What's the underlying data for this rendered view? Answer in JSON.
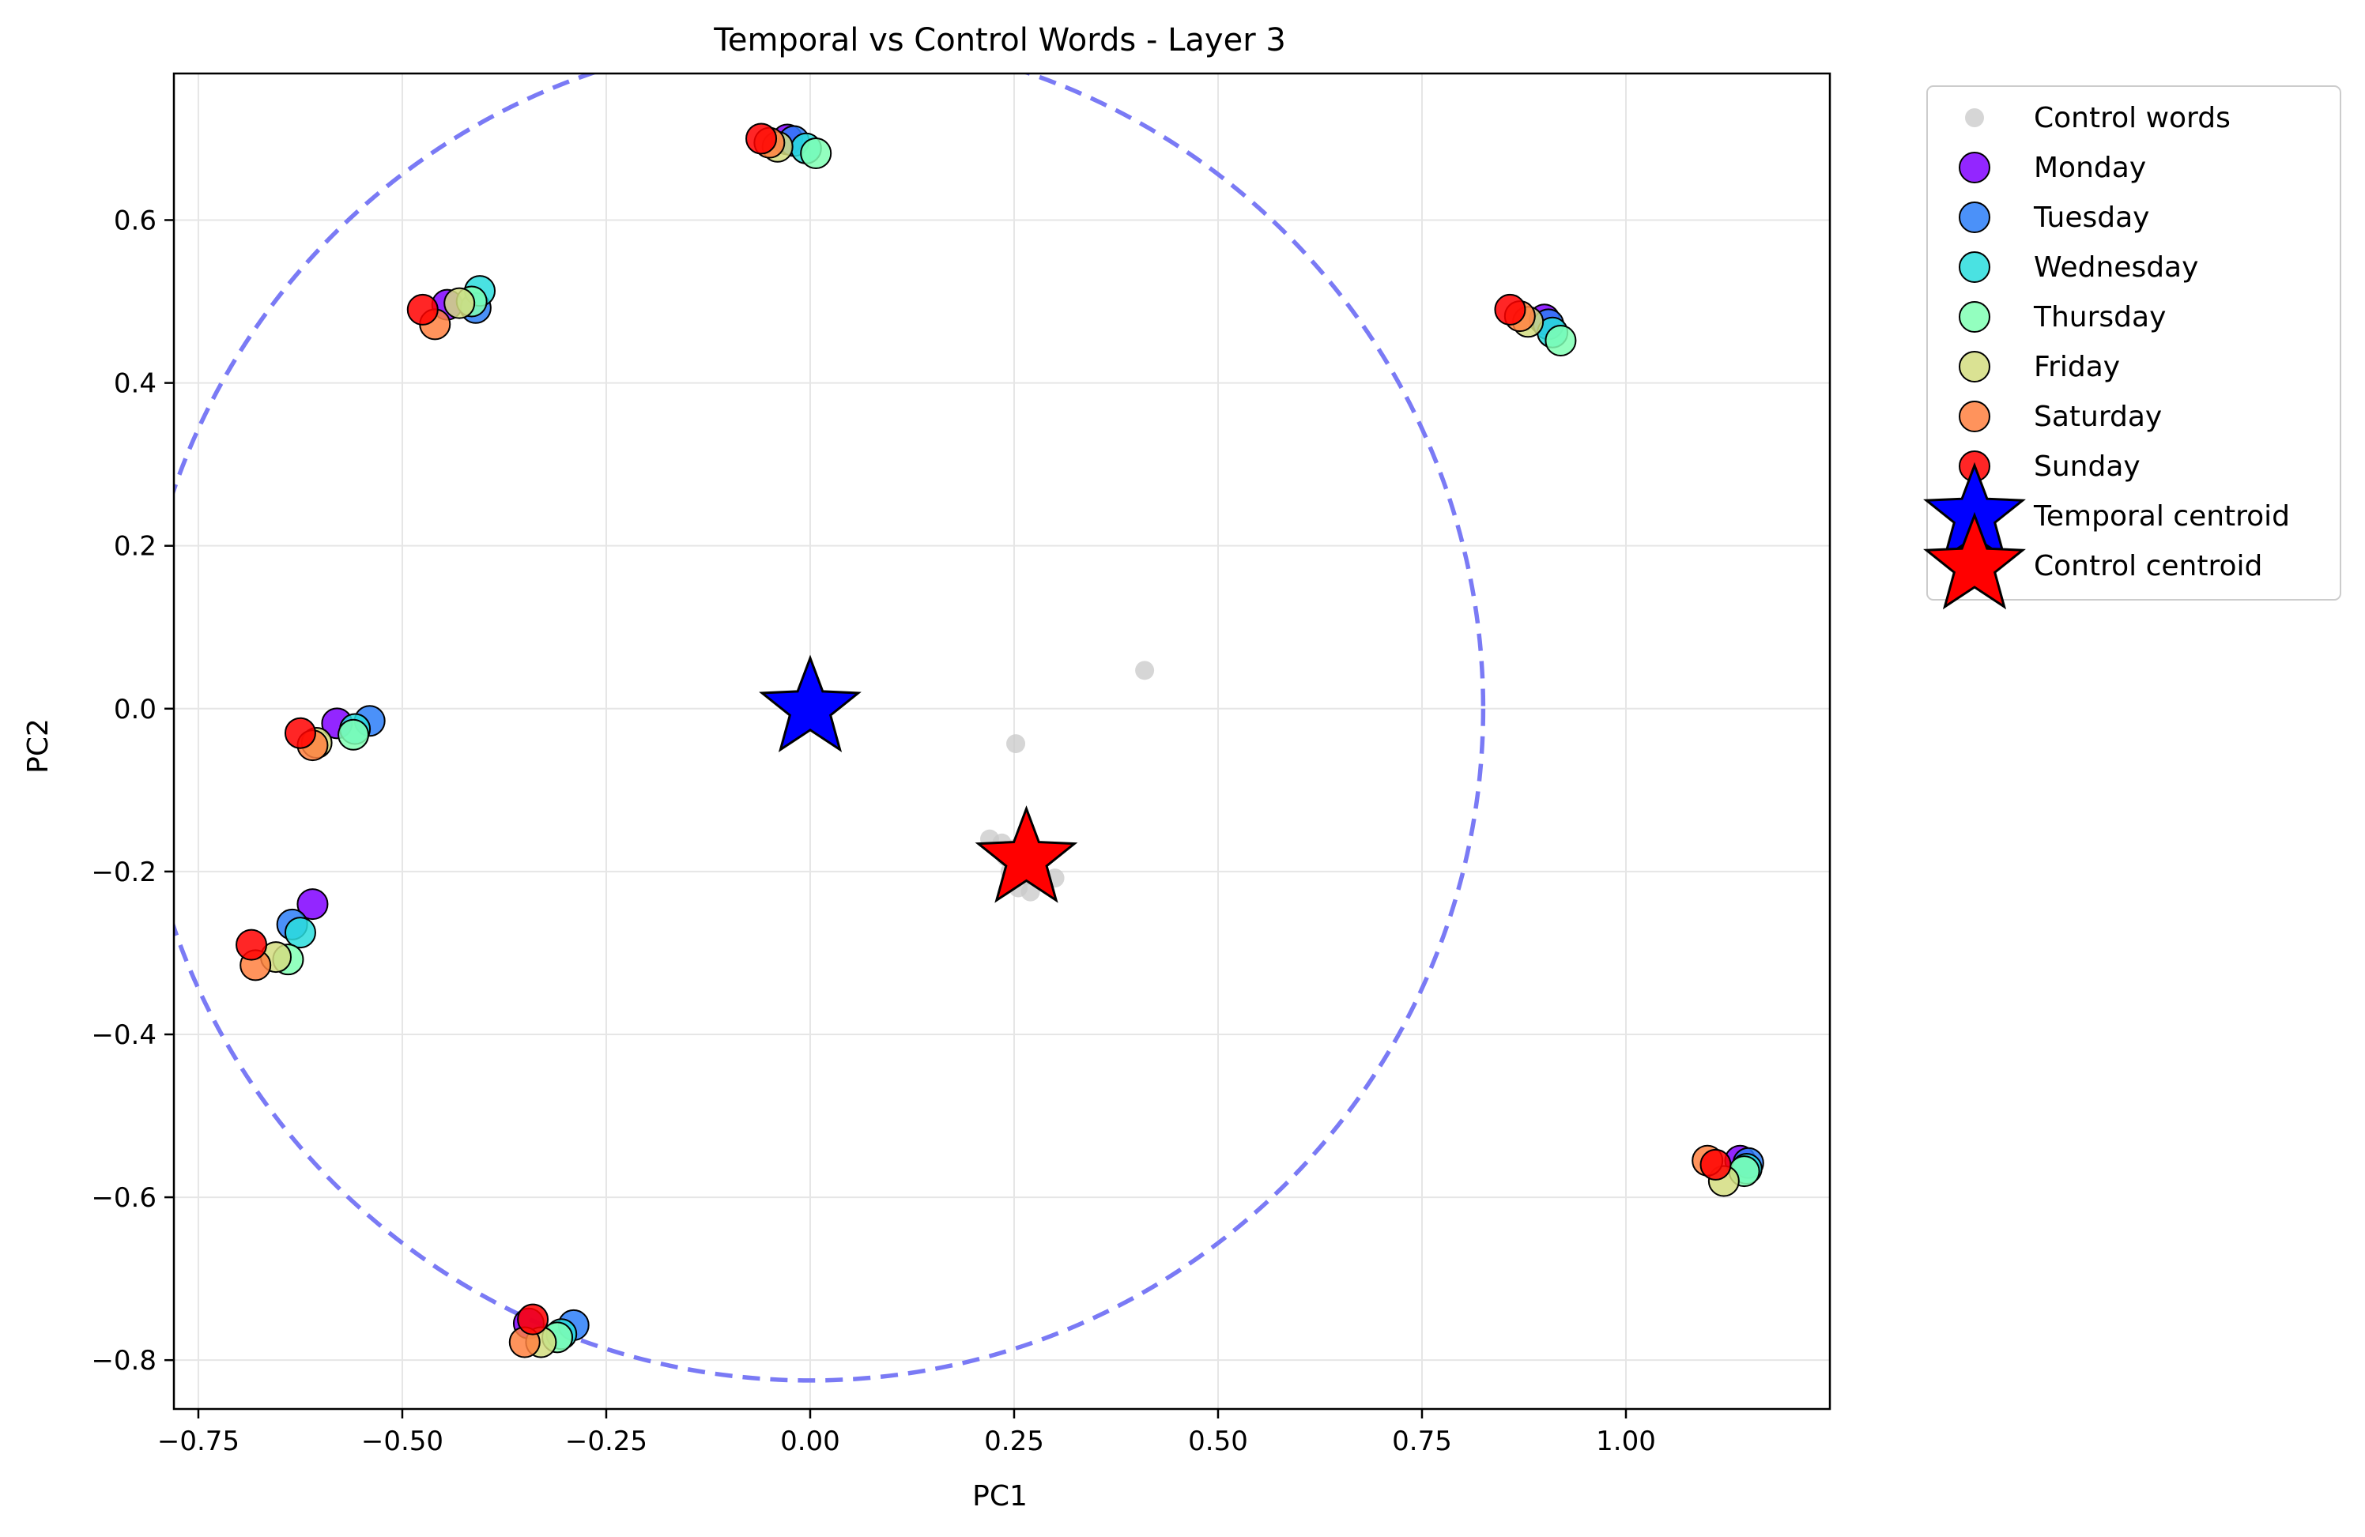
{
  "chart_data": {
    "type": "scatter",
    "title": "Temporal vs Control Words - Layer 3",
    "xlabel": "PC1",
    "ylabel": "PC2",
    "xlim": [
      -0.78,
      1.25
    ],
    "ylim": [
      -0.86,
      0.78
    ],
    "grid": true,
    "legend_position": "outside-right",
    "x_ticks": [
      -0.75,
      -0.5,
      -0.25,
      0.0,
      0.25,
      0.5,
      0.75,
      1.0
    ],
    "x_tick_labels": [
      "−0.75",
      "−0.50",
      "−0.25",
      "0.00",
      "0.25",
      "0.50",
      "0.75",
      "1.00"
    ],
    "y_ticks": [
      -0.8,
      -0.6,
      -0.4,
      -0.2,
      0.0,
      0.2,
      0.4,
      0.6
    ],
    "y_tick_labels": [
      "−0.8",
      "−0.6",
      "−0.4",
      "−0.2",
      "0.0",
      "0.2",
      "0.4",
      "0.6"
    ],
    "circle": {
      "center": [
        0.0,
        0.0
      ],
      "radius": 0.825,
      "color": "#7a7af5",
      "style": "dashed"
    },
    "series": [
      {
        "name": "Control words",
        "color": "#c8c8c8",
        "marker": "small-circle",
        "points": [
          [
            0.41,
            0.047
          ],
          [
            0.252,
            -0.043
          ],
          [
            0.22,
            -0.16
          ],
          [
            0.235,
            -0.165
          ],
          [
            0.25,
            -0.172
          ],
          [
            0.255,
            -0.19
          ],
          [
            0.245,
            -0.2
          ],
          [
            0.265,
            -0.205
          ],
          [
            0.28,
            -0.2
          ],
          [
            0.3,
            -0.208
          ],
          [
            0.255,
            -0.22
          ],
          [
            0.27,
            -0.225
          ],
          [
            0.24,
            -0.182
          ],
          [
            0.285,
            -0.175
          ]
        ]
      },
      {
        "name": "Monday",
        "color": "#8000ff",
        "points": [
          [
            -0.028,
            0.699
          ],
          [
            -0.445,
            0.496
          ],
          [
            -0.58,
            -0.018
          ],
          [
            -0.61,
            -0.24
          ],
          [
            -0.345,
            -0.755
          ],
          [
            0.9,
            0.478
          ],
          [
            1.14,
            -0.555
          ]
        ]
      },
      {
        "name": "Tuesday",
        "color": "#2c7ef8",
        "points": [
          [
            -0.02,
            0.697
          ],
          [
            -0.41,
            0.492
          ],
          [
            -0.54,
            -0.015
          ],
          [
            -0.635,
            -0.265
          ],
          [
            -0.29,
            -0.757
          ],
          [
            0.905,
            0.472
          ],
          [
            1.15,
            -0.558
          ]
        ]
      },
      {
        "name": "Wednesday",
        "color": "#2adddd",
        "points": [
          [
            -0.005,
            0.688
          ],
          [
            -0.405,
            0.513
          ],
          [
            -0.558,
            -0.025
          ],
          [
            -0.625,
            -0.275
          ],
          [
            -0.305,
            -0.768
          ],
          [
            0.91,
            0.462
          ],
          [
            1.148,
            -0.565
          ]
        ]
      },
      {
        "name": "Thursday",
        "color": "#80ffb4",
        "points": [
          [
            0.007,
            0.682
          ],
          [
            -0.415,
            0.5
          ],
          [
            -0.56,
            -0.032
          ],
          [
            -0.64,
            -0.308
          ],
          [
            -0.31,
            -0.772
          ],
          [
            0.92,
            0.452
          ],
          [
            1.145,
            -0.568
          ]
        ]
      },
      {
        "name": "Friday",
        "color": "#d4dd80",
        "points": [
          [
            -0.04,
            0.69
          ],
          [
            -0.43,
            0.498
          ],
          [
            -0.605,
            -0.042
          ],
          [
            -0.655,
            -0.305
          ],
          [
            -0.33,
            -0.778
          ],
          [
            0.88,
            0.475
          ],
          [
            1.12,
            -0.58
          ]
        ]
      },
      {
        "name": "Saturday",
        "color": "#ff8040",
        "points": [
          [
            -0.05,
            0.695
          ],
          [
            -0.46,
            0.472
          ],
          [
            -0.61,
            -0.045
          ],
          [
            -0.68,
            -0.315
          ],
          [
            -0.35,
            -0.778
          ],
          [
            0.87,
            0.482
          ],
          [
            1.1,
            -0.555
          ]
        ]
      },
      {
        "name": "Sunday",
        "color": "#ff0000",
        "points": [
          [
            -0.06,
            0.7
          ],
          [
            -0.475,
            0.49
          ],
          [
            -0.625,
            -0.03
          ],
          [
            -0.685,
            -0.29
          ],
          [
            -0.34,
            -0.75
          ],
          [
            0.858,
            0.49
          ],
          [
            1.11,
            -0.56
          ]
        ]
      }
    ],
    "centroids": [
      {
        "name": "Temporal centroid",
        "color": "#0000ff",
        "x": 0.0,
        "y": 0.0
      },
      {
        "name": "Control centroid",
        "color": "#ff0000",
        "x": 0.265,
        "y": -0.185
      }
    ]
  }
}
